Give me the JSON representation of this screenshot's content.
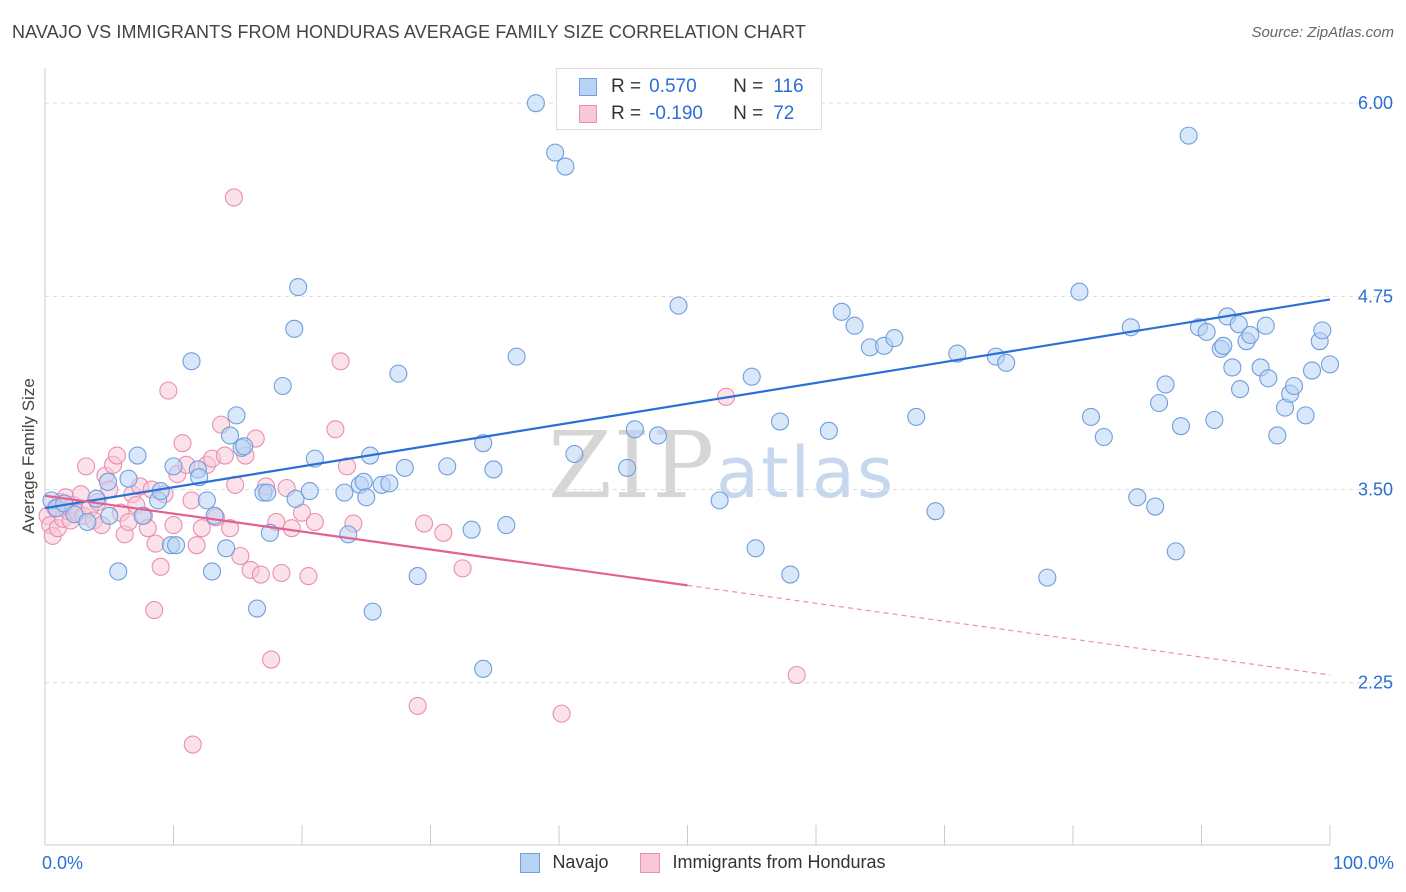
{
  "title": "NAVAJO VS IMMIGRANTS FROM HONDURAS AVERAGE FAMILY SIZE CORRELATION CHART",
  "source": "Source: ZipAtlas.com",
  "watermark": {
    "zip": "ZIP",
    "atlas": "atlas"
  },
  "legend": {
    "r_label": "R =",
    "n_label": "N =",
    "navajo": {
      "r": "0.570",
      "n": "116"
    },
    "honduras": {
      "r": "-0.190",
      "n": "72"
    }
  },
  "colors": {
    "navajo_fill": "#b8d3f4",
    "navajo_stroke": "#6f9fdc",
    "navajo_line": "#2a6fd6",
    "honduras_fill": "#f8c8d8",
    "honduras_stroke": "#ec8eae",
    "honduras_line": "#e5608e",
    "tick_label": "#2a6fd6"
  },
  "chart_data": {
    "type": "scatter",
    "title": "NAVAJO VS IMMIGRANTS FROM HONDURAS AVERAGE FAMILY SIZE CORRELATION CHART",
    "xlabel": "",
    "ylabel": "Average Family Size",
    "xlim": [
      0,
      100
    ],
    "ylim": [
      1.2,
      6.15
    ],
    "x_tick_labels": [
      "0.0%",
      "100.0%"
    ],
    "y_ticks": [
      2.25,
      3.5,
      4.75,
      6.0
    ],
    "y_tick_labels": [
      "2.25",
      "3.50",
      "4.75",
      "6.00"
    ],
    "grid": "horizontal dashed",
    "legend_position": "top-center",
    "series": [
      {
        "name": "Navajo",
        "trend": {
          "x": [
            0,
            100
          ],
          "y": [
            3.38,
            4.73
          ],
          "style": "solid"
        },
        "points": [
          [
            0.5,
            3.43
          ],
          [
            0.9,
            3.38
          ],
          [
            1.5,
            3.41
          ],
          [
            2.3,
            3.34
          ],
          [
            3.3,
            3.29
          ],
          [
            4.0,
            3.44
          ],
          [
            4.9,
            3.55
          ],
          [
            5.0,
            3.33
          ],
          [
            5.7,
            2.97
          ],
          [
            6.5,
            3.57
          ],
          [
            7.2,
            3.72
          ],
          [
            7.6,
            3.33
          ],
          [
            8.8,
            3.43
          ],
          [
            9.0,
            3.49
          ],
          [
            9.8,
            3.14
          ],
          [
            10.0,
            3.65
          ],
          [
            10.2,
            3.14
          ],
          [
            11.4,
            4.33
          ],
          [
            11.9,
            3.63
          ],
          [
            12.0,
            3.58
          ],
          [
            12.6,
            3.43
          ],
          [
            13.0,
            2.97
          ],
          [
            13.2,
            3.33
          ],
          [
            14.1,
            3.12
          ],
          [
            14.4,
            3.85
          ],
          [
            14.9,
            3.98
          ],
          [
            15.3,
            3.77
          ],
          [
            15.5,
            3.78
          ],
          [
            16.5,
            2.73
          ],
          [
            17.0,
            3.48
          ],
          [
            17.5,
            3.22
          ],
          [
            17.3,
            3.48
          ],
          [
            18.5,
            4.17
          ],
          [
            19.5,
            3.44
          ],
          [
            19.4,
            4.54
          ],
          [
            19.7,
            4.81
          ],
          [
            20.6,
            3.49
          ],
          [
            21.0,
            3.7
          ],
          [
            23.3,
            3.48
          ],
          [
            23.6,
            3.21
          ],
          [
            24.5,
            3.53
          ],
          [
            24.8,
            3.55
          ],
          [
            25.3,
            3.72
          ],
          [
            25.0,
            3.45
          ],
          [
            25.5,
            2.71
          ],
          [
            26.2,
            3.53
          ],
          [
            26.8,
            3.54
          ],
          [
            27.5,
            4.25
          ],
          [
            28.0,
            3.64
          ],
          [
            29.0,
            2.94
          ],
          [
            31.3,
            3.65
          ],
          [
            34.1,
            2.34
          ],
          [
            33.2,
            3.24
          ],
          [
            34.1,
            3.8
          ],
          [
            34.9,
            3.63
          ],
          [
            35.9,
            3.27
          ],
          [
            36.7,
            4.36
          ],
          [
            38.2,
            6.0
          ],
          [
            39.7,
            5.68
          ],
          [
            40.5,
            5.59
          ],
          [
            41.2,
            3.73
          ],
          [
            45.3,
            3.64
          ],
          [
            45.9,
            3.89
          ],
          [
            47.7,
            3.85
          ],
          [
            49.3,
            4.69
          ],
          [
            52.5,
            3.43
          ],
          [
            55.0,
            4.23
          ],
          [
            55.3,
            3.12
          ],
          [
            57.2,
            3.94
          ],
          [
            58.0,
            2.95
          ],
          [
            61.0,
            3.88
          ],
          [
            62.0,
            4.65
          ],
          [
            63.0,
            4.56
          ],
          [
            64.2,
            4.42
          ],
          [
            65.3,
            4.43
          ],
          [
            66.1,
            4.48
          ],
          [
            67.8,
            3.97
          ],
          [
            69.3,
            3.36
          ],
          [
            71.0,
            4.38
          ],
          [
            74.0,
            4.36
          ],
          [
            74.8,
            4.32
          ],
          [
            78.0,
            2.93
          ],
          [
            80.5,
            4.78
          ],
          [
            81.4,
            3.97
          ],
          [
            82.4,
            3.84
          ],
          [
            84.5,
            4.55
          ],
          [
            86.4,
            3.39
          ],
          [
            86.7,
            4.06
          ],
          [
            87.2,
            4.18
          ],
          [
            88.4,
            3.91
          ],
          [
            89.0,
            5.79
          ],
          [
            89.8,
            4.55
          ],
          [
            90.4,
            4.52
          ],
          [
            91.5,
            4.41
          ],
          [
            91.7,
            4.43
          ],
          [
            92.0,
            4.62
          ],
          [
            92.4,
            4.29
          ],
          [
            92.9,
            4.57
          ],
          [
            93.5,
            4.46
          ],
          [
            93.8,
            4.5
          ],
          [
            94.6,
            4.29
          ],
          [
            95.2,
            4.22
          ],
          [
            95.9,
            3.85
          ],
          [
            96.5,
            4.03
          ],
          [
            96.9,
            4.12
          ],
          [
            97.2,
            4.17
          ],
          [
            98.1,
            3.98
          ],
          [
            98.6,
            4.27
          ],
          [
            99.2,
            4.46
          ],
          [
            99.4,
            4.53
          ],
          [
            100.0,
            4.31
          ],
          [
            95.0,
            4.56
          ],
          [
            93.0,
            4.15
          ],
          [
            91.0,
            3.95
          ],
          [
            88.0,
            3.1
          ],
          [
            85.0,
            3.45
          ]
        ]
      },
      {
        "name": "Immigrants from Honduras",
        "trend": {
          "x": [
            0,
            50
          ],
          "y": [
            3.46,
            2.88
          ],
          "style": "solid",
          "extension": {
            "x": [
              50,
              100
            ],
            "y": [
              2.88,
              2.3
            ],
            "style": "dashed"
          }
        },
        "points": [
          [
            0.2,
            3.33
          ],
          [
            0.4,
            3.27
          ],
          [
            0.6,
            3.2
          ],
          [
            0.8,
            3.38
          ],
          [
            1.0,
            3.25
          ],
          [
            1.2,
            3.42
          ],
          [
            1.4,
            3.31
          ],
          [
            1.6,
            3.45
          ],
          [
            1.8,
            3.36
          ],
          [
            2.0,
            3.3
          ],
          [
            2.2,
            3.4
          ],
          [
            2.5,
            3.35
          ],
          [
            2.8,
            3.47
          ],
          [
            3.0,
            3.33
          ],
          [
            3.2,
            3.65
          ],
          [
            3.5,
            3.38
          ],
          [
            3.8,
            3.3
          ],
          [
            4.1,
            3.42
          ],
          [
            4.4,
            3.27
          ],
          [
            4.7,
            3.59
          ],
          [
            5.0,
            3.5
          ],
          [
            5.3,
            3.66
          ],
          [
            5.6,
            3.72
          ],
          [
            5.9,
            3.35
          ],
          [
            6.2,
            3.21
          ],
          [
            6.5,
            3.29
          ],
          [
            6.8,
            3.47
          ],
          [
            7.1,
            3.4
          ],
          [
            7.4,
            3.52
          ],
          [
            7.7,
            3.33
          ],
          [
            8.0,
            3.25
          ],
          [
            8.3,
            3.5
          ],
          [
            8.6,
            3.15
          ],
          [
            9.0,
            3.0
          ],
          [
            9.3,
            3.47
          ],
          [
            9.6,
            4.14
          ],
          [
            10.0,
            3.27
          ],
          [
            10.3,
            3.6
          ],
          [
            10.7,
            3.8
          ],
          [
            11.0,
            3.66
          ],
          [
            11.4,
            3.43
          ],
          [
            11.8,
            3.14
          ],
          [
            12.2,
            3.25
          ],
          [
            12.6,
            3.66
          ],
          [
            13.0,
            3.7
          ],
          [
            13.3,
            3.32
          ],
          [
            13.7,
            3.92
          ],
          [
            14.0,
            3.72
          ],
          [
            14.4,
            3.25
          ],
          [
            14.8,
            3.53
          ],
          [
            15.2,
            3.07
          ],
          [
            15.6,
            3.72
          ],
          [
            16.0,
            2.98
          ],
          [
            16.4,
            3.83
          ],
          [
            16.8,
            2.95
          ],
          [
            17.2,
            3.52
          ],
          [
            17.6,
            2.4
          ],
          [
            18.0,
            3.29
          ],
          [
            18.4,
            2.96
          ],
          [
            18.8,
            3.51
          ],
          [
            19.2,
            3.25
          ],
          [
            20.0,
            3.35
          ],
          [
            20.5,
            2.94
          ],
          [
            21.0,
            3.29
          ],
          [
            23.0,
            4.33
          ],
          [
            22.6,
            3.89
          ],
          [
            23.5,
            3.65
          ],
          [
            24.0,
            3.28
          ],
          [
            29.0,
            2.1
          ],
          [
            29.5,
            3.28
          ],
          [
            31.0,
            3.22
          ],
          [
            32.5,
            2.99
          ]
        ]
      }
    ],
    "extra_points_honduras": [
      [
        11.5,
        1.85
      ],
      [
        14.7,
        5.39
      ],
      [
        40.2,
        2.05
      ],
      [
        53.0,
        4.1
      ],
      [
        58.5,
        2.3
      ],
      [
        8.5,
        2.72
      ]
    ]
  }
}
